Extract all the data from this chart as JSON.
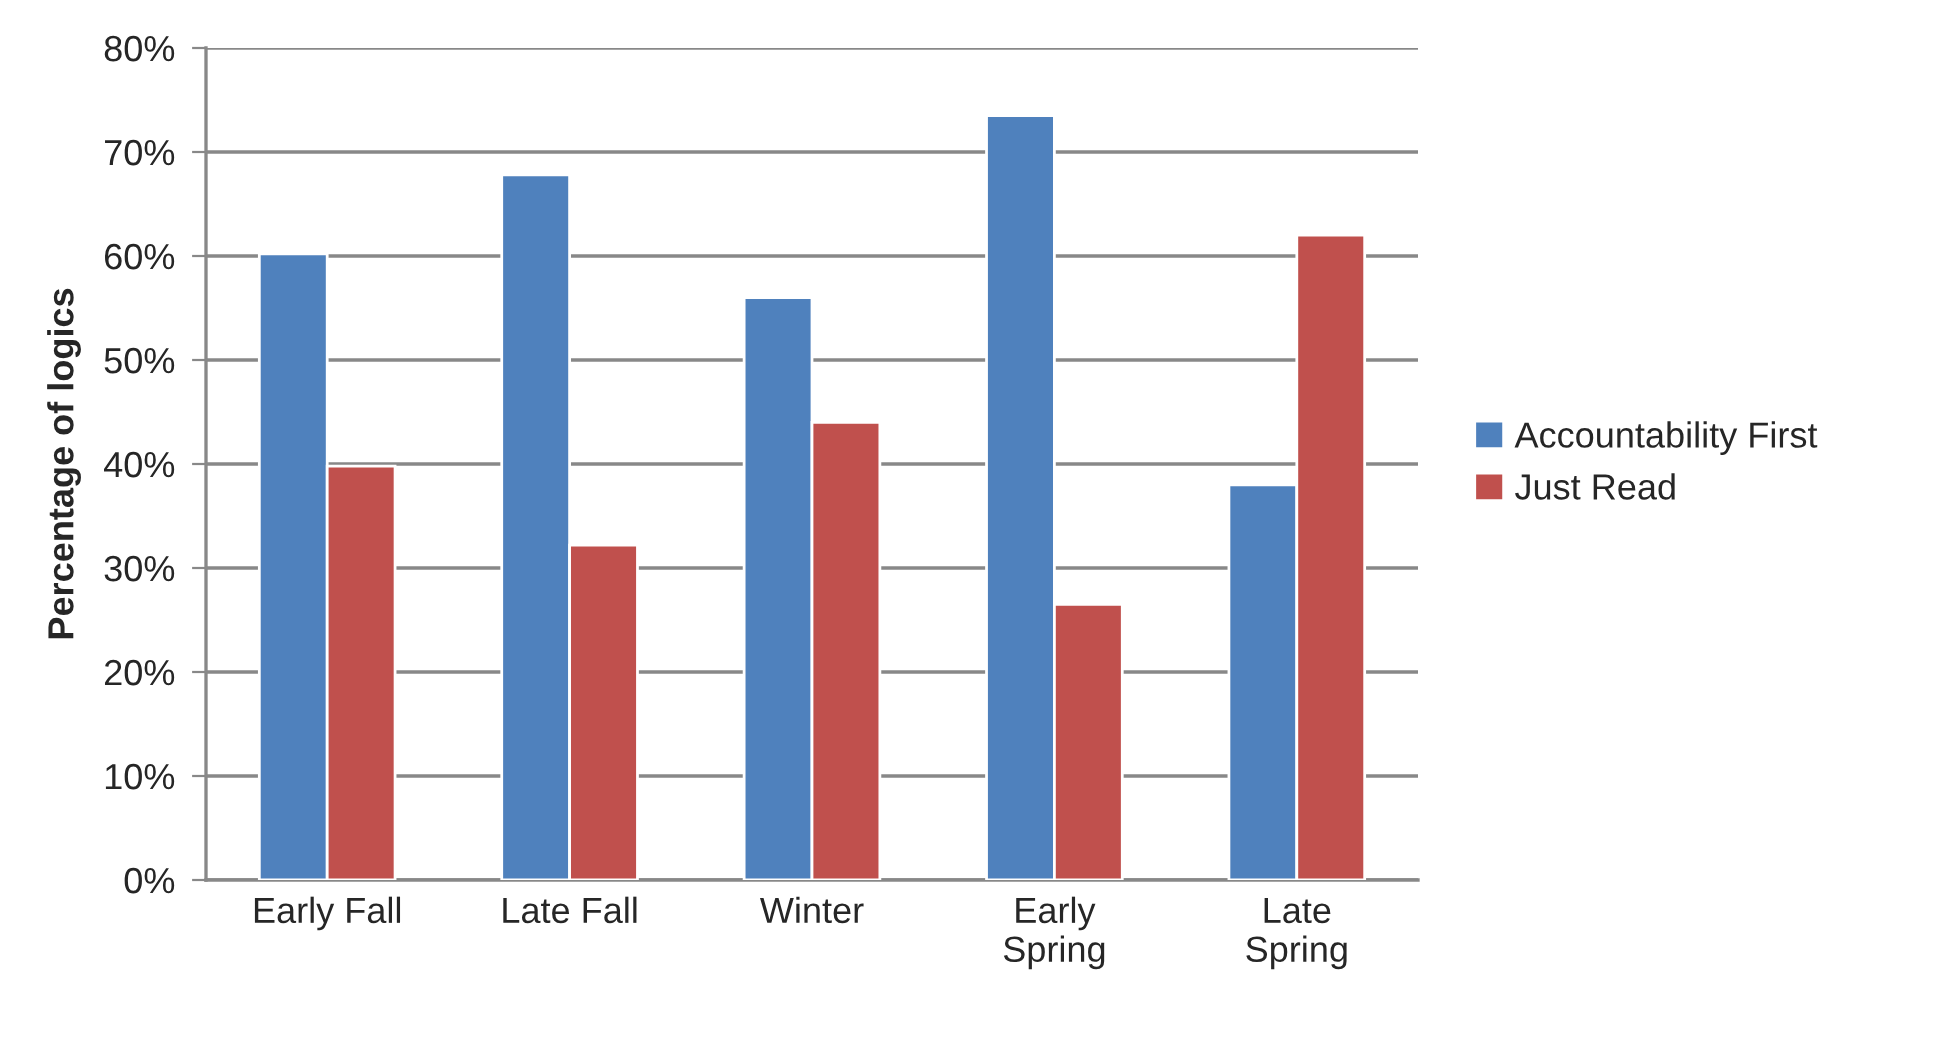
{
  "chart_data": {
    "type": "bar",
    "ylabel": "Percentage of logics",
    "categories": [
      "Early Fall",
      "Late Fall",
      "Winter",
      "Early Spring",
      "Late Spring"
    ],
    "series": [
      {
        "name": "Accountability First",
        "color": "#4f81bd",
        "values": [
          60.2,
          67.8,
          56,
          73.5,
          38
        ]
      },
      {
        "name": "Just Read",
        "color": "#c0504d",
        "values": [
          39.8,
          32.2,
          44,
          26.5,
          62
        ]
      }
    ],
    "ylim": [
      0,
      80
    ],
    "yticks": [
      {
        "value": 0,
        "label": "0%"
      },
      {
        "value": 10,
        "label": "10%"
      },
      {
        "value": 20,
        "label": "20%"
      },
      {
        "value": 30,
        "label": "30%"
      },
      {
        "value": 40,
        "label": "40%"
      },
      {
        "value": 50,
        "label": "50%"
      },
      {
        "value": 60,
        "label": "60%"
      },
      {
        "value": 70,
        "label": "70%"
      },
      {
        "value": 80,
        "label": "80%"
      }
    ],
    "grid": "y",
    "legend": "right"
  }
}
